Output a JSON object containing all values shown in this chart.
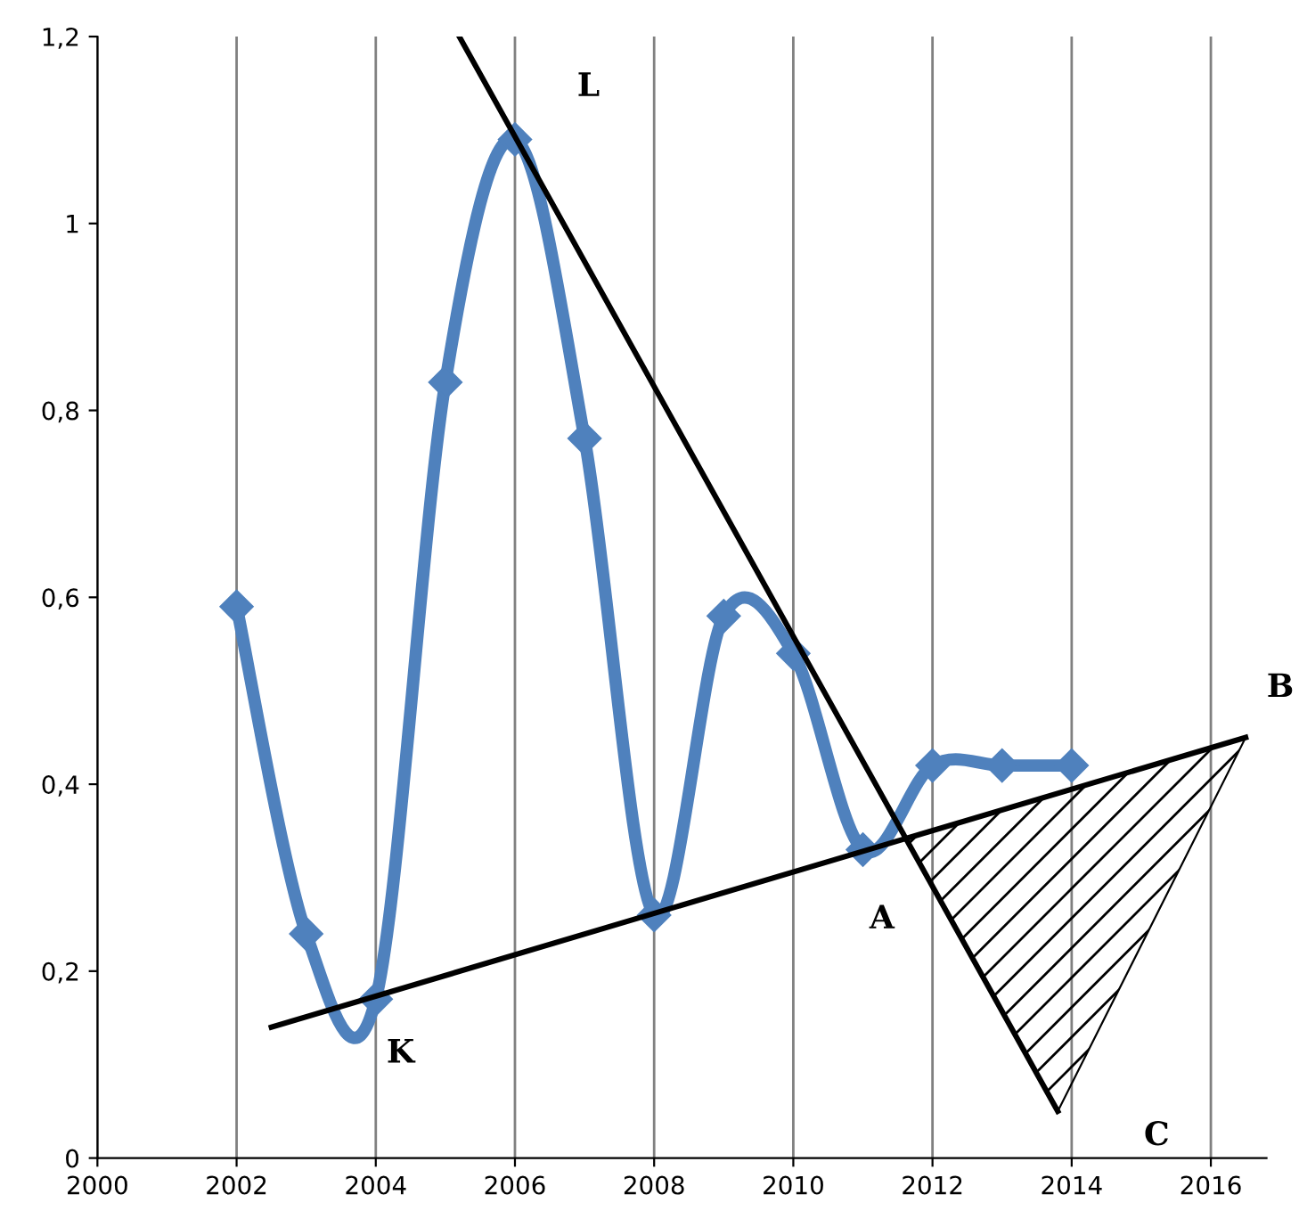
{
  "chart_data": {
    "type": "line",
    "x": [
      2002,
      2003,
      2004,
      2005,
      2006,
      2007,
      2008,
      2009,
      2010,
      2011,
      2012,
      2013,
      2014
    ],
    "series": [
      {
        "color": "#4f81bd",
        "values": [
          0.59,
          0.24,
          0.17,
          0.83,
          1.09,
          0.77,
          0.26,
          0.58,
          0.54,
          0.33,
          0.42,
          0.42,
          0.42
        ],
        "marker": "diamond"
      },
      {
        "type": "line",
        "color": "#000000",
        "x": [
          2002.5,
          2016.5
        ],
        "values": [
          0.14,
          0.45
        ],
        "marker": "none"
      },
      {
        "type": "line",
        "color": "#000000",
        "x": [
          2005.2,
          2013.8
        ],
        "values": [
          1.2,
          0.05
        ],
        "marker": "none"
      }
    ],
    "xlim": [
      2000,
      2016.8
    ],
    "xticks": [
      2000,
      2002,
      2004,
      2006,
      2008,
      2010,
      2012,
      2014,
      2016
    ],
    "ylim": [
      0,
      1.2
    ],
    "yticks": [
      {
        "value": 0,
        "label": "0"
      },
      {
        "value": 0.2,
        "label": "0,2"
      },
      {
        "value": 0.4,
        "label": "0,4"
      },
      {
        "value": 0.6,
        "label": "0,6"
      },
      {
        "value": 0.8,
        "label": "0,8"
      },
      {
        "value": 1,
        "label": "1"
      },
      {
        "value": 1.2,
        "label": "1,2"
      }
    ],
    "grid": "x",
    "annotations": [
      "L",
      {
        "text": "K",
        "x": 2004,
        "y": 0.17
      },
      {
        "text": "A",
        "x": 2011.7,
        "y": 0.34
      },
      {
        "text": "B",
        "x": 2016.5,
        "y": 0.45
      },
      {
        "text": "C",
        "x": 2013.8,
        "y": 0.05
      }
    ]
  }
}
